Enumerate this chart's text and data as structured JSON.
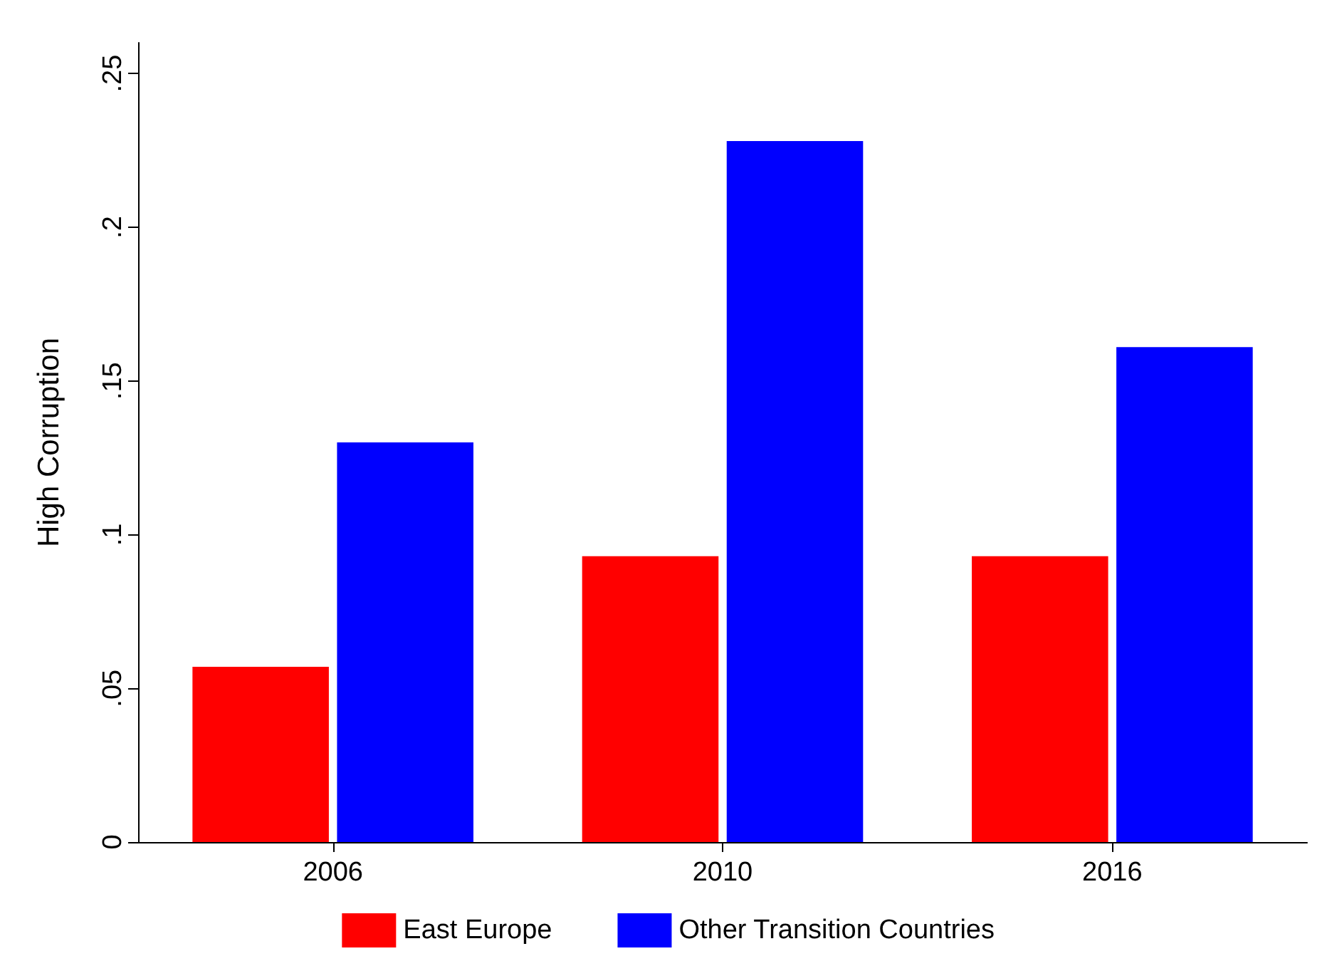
{
  "chart_data": {
    "type": "bar",
    "ylabel": "High Corruption",
    "categories": [
      "2006",
      "2010",
      "2016"
    ],
    "series": [
      {
        "name": "East Europe",
        "color": "#ff0000",
        "values": [
          0.057,
          0.093,
          0.093
        ]
      },
      {
        "name": "Other Transition Countries",
        "color": "#0000ff",
        "values": [
          0.13,
          0.228,
          0.161
        ]
      }
    ],
    "ylim": [
      0,
      0.26
    ],
    "yticks": [
      {
        "value": 0,
        "label": "0"
      },
      {
        "value": 0.05,
        "label": ".05"
      },
      {
        "value": 0.1,
        "label": ".1"
      },
      {
        "value": 0.15,
        "label": ".15"
      },
      {
        "value": 0.2,
        "label": ".2"
      },
      {
        "value": 0.25,
        "label": ".25"
      }
    ],
    "grid": false,
    "legend": "bottom"
  }
}
